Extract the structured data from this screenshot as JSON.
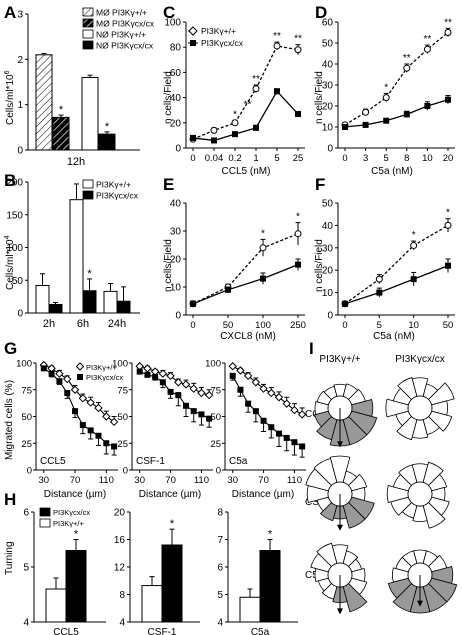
{
  "panels": {
    "A": {
      "letter": "A",
      "ylabel": "Cells/ml*10",
      "ylabel_sup": "6",
      "legend": [
        "MØ PI3Kγ+/+",
        "MØ PI3Kγcx/cx",
        "NØ PI3Kγ+/+",
        "NØ PI3Kγcx/cx"
      ],
      "xlabel": "12h"
    },
    "B": {
      "letter": "B",
      "ylabel": "Cells/ml*10",
      "ylabel_sup": "4",
      "legend": [
        "PI3Kγ+/+",
        "PI3Kγcx/cx"
      ]
    },
    "C": {
      "letter": "C",
      "ylabel": "n cells/Field",
      "xlabel": "CCL5 (nM)",
      "legend": [
        "PI3Kγ+/+",
        "PI3Kγcx/cx"
      ]
    },
    "D": {
      "letter": "D",
      "ylabel": "n cells/Field",
      "xlabel": "C5a (nM)"
    },
    "E": {
      "letter": "E",
      "ylabel": "n cells/Field",
      "xlabel": "CXCL8 (nM)"
    },
    "F": {
      "letter": "F",
      "ylabel": "n cells/Field",
      "xlabel": "C5a (nM)"
    },
    "G": {
      "letter": "G",
      "ylabel": "Migrated cells (%)",
      "xlabel": "Distance (µm)",
      "legend": [
        "PI3Kγ+/+",
        "PI3Kγcx/cx"
      ]
    },
    "H": {
      "letter": "H",
      "ylabel": "Turning",
      "legend": [
        "PI3Kγcx/cx",
        "PI3Kγ+/+"
      ]
    },
    "I": {
      "letter": "I",
      "cols": [
        "PI3Kγ+/+",
        "PI3Kγcx/cx"
      ],
      "rows": [
        "CCL5",
        "CSF-1",
        "C5a"
      ]
    }
  },
  "chart_data": [
    {
      "id": "A",
      "type": "bar",
      "categories": [
        "12h"
      ],
      "ylim": [
        0,
        3
      ],
      "yticks": [
        0,
        1,
        2,
        3
      ],
      "series": [
        {
          "name": "MØ PI3Kγ+/+",
          "values": [
            2.1
          ],
          "err": [
            0.03
          ]
        },
        {
          "name": "MØ PI3Kγcx/cx",
          "values": [
            0.72
          ],
          "err": [
            0.05
          ]
        },
        {
          "name": "NØ PI3Kγ+/+",
          "values": [
            1.6
          ],
          "err": [
            0.05
          ]
        },
        {
          "name": "NØ PI3Kγcx/cx",
          "values": [
            0.35
          ],
          "err": [
            0.05
          ]
        }
      ],
      "sig": [
        "",
        "*",
        "",
        "*"
      ]
    },
    {
      "id": "B",
      "type": "bar",
      "categories": [
        "2h",
        "6h",
        "24h"
      ],
      "ylim": [
        0,
        200
      ],
      "yticks": [
        0,
        50,
        100,
        150,
        200
      ],
      "series": [
        {
          "name": "PI3Kγ+/+",
          "values": [
            42,
            173,
            33
          ],
          "err": [
            18,
            24,
            12
          ]
        },
        {
          "name": "PI3Kγcx/cx",
          "values": [
            13,
            34,
            18
          ],
          "err": [
            3,
            18,
            22
          ]
        }
      ],
      "sig": [
        "",
        "*",
        ""
      ]
    },
    {
      "id": "C",
      "type": "line",
      "xticks": [
        "0",
        "0.04",
        "0.2",
        "1",
        "5",
        "25"
      ],
      "ylim": [
        0,
        100
      ],
      "yticks": [
        0,
        20,
        40,
        60,
        80,
        100
      ],
      "series": [
        {
          "name": "PI3Kγ+/+",
          "values": [
            7,
            14,
            20,
            47,
            81,
            78
          ],
          "err": [
            2,
            2,
            2,
            3,
            3,
            4
          ]
        },
        {
          "name": "PI3Kγcx/cx",
          "values": [
            8,
            6,
            11,
            16,
            45,
            27
          ],
          "err": [
            1,
            1,
            1,
            2,
            2,
            2
          ]
        }
      ],
      "sig": [
        "",
        "",
        "*",
        "**",
        "**",
        "**"
      ],
      "sig_extra": {
        "label": "**",
        "after_index": 2
      }
    },
    {
      "id": "D",
      "type": "line",
      "xticks": [
        "0",
        "3",
        "5",
        "8",
        "10",
        "20"
      ],
      "ylim": [
        0,
        60
      ],
      "yticks": [
        0,
        10,
        20,
        30,
        40,
        50,
        60
      ],
      "series": [
        {
          "name": "PI3Kγ+/+",
          "values": [
            11,
            17,
            24,
            38,
            47,
            55
          ],
          "err": [
            1,
            1.5,
            2,
            2,
            2,
            2
          ]
        },
        {
          "name": "PI3Kγcx/cx",
          "values": [
            10,
            11,
            13,
            16,
            20,
            23
          ],
          "err": [
            1,
            1,
            1,
            1.5,
            2,
            2
          ]
        }
      ],
      "sig": [
        "",
        "",
        "*",
        "**",
        "**",
        "**"
      ]
    },
    {
      "id": "E",
      "type": "line",
      "xticks": [
        "0",
        "50",
        "100",
        "250"
      ],
      "ylim": [
        0,
        40
      ],
      "yticks": [
        0,
        10,
        20,
        30,
        40
      ],
      "series": [
        {
          "name": "PI3Kγ+/+",
          "values": [
            4,
            10,
            24,
            29
          ],
          "err": [
            1,
            1,
            3,
            4
          ]
        },
        {
          "name": "PI3Kγcx/cx",
          "values": [
            4,
            9,
            13,
            18
          ],
          "err": [
            1,
            1,
            2,
            2
          ]
        }
      ],
      "sig": [
        "",
        "",
        "*",
        "*"
      ]
    },
    {
      "id": "F",
      "type": "line",
      "xticks": [
        "0",
        "5",
        "10",
        "50"
      ],
      "ylim": [
        0,
        50
      ],
      "yticks": [
        0,
        10,
        20,
        30,
        40,
        50
      ],
      "series": [
        {
          "name": "PI3Kγ+/+",
          "values": [
            5,
            16,
            31,
            40
          ],
          "err": [
            1,
            2,
            2,
            3
          ]
        },
        {
          "name": "PI3Kγcx/cx",
          "values": [
            5,
            10,
            16,
            22
          ],
          "err": [
            1,
            2,
            3,
            3
          ]
        }
      ],
      "sig": [
        "",
        "",
        "*",
        "*"
      ]
    },
    {
      "id": "G1",
      "type": "line",
      "label": "CCL5",
      "xticks": [
        "30",
        "70",
        "110"
      ],
      "xvals": [
        30,
        40,
        50,
        60,
        70,
        80,
        90,
        100,
        110,
        120
      ],
      "xlim": [
        20,
        125
      ],
      "ylim": [
        0,
        100
      ],
      "yticks": [
        0,
        25,
        50,
        75,
        100
      ],
      "series": [
        {
          "name": "PI3Kγ+/+",
          "values": [
            98,
            95,
            90,
            85,
            75,
            67,
            63,
            58,
            50,
            45
          ],
          "err": [
            1,
            2,
            3,
            3,
            4,
            4,
            5,
            5,
            5,
            5
          ]
        },
        {
          "name": "PI3Kγcx/cx",
          "values": [
            95,
            90,
            83,
            72,
            55,
            42,
            37,
            32,
            25,
            22
          ],
          "err": [
            2,
            3,
            3,
            5,
            6,
            8,
            8,
            9,
            10,
            8
          ]
        }
      ]
    },
    {
      "id": "G2",
      "type": "line",
      "label": "CSF-1",
      "xticks": [
        "30",
        "70",
        "110"
      ],
      "xvals": [
        30,
        40,
        50,
        60,
        70,
        80,
        90,
        100,
        110,
        120
      ],
      "xlim": [
        20,
        125
      ],
      "ylim": [
        0,
        100
      ],
      "yticks": [
        0,
        25,
        50,
        75,
        100
      ],
      "series": [
        {
          "name": "PI3Kγ+/+",
          "values": [
            97,
            95,
            92,
            90,
            88,
            82,
            80,
            76,
            72,
            70
          ],
          "err": [
            1,
            2,
            2,
            3,
            3,
            3,
            4,
            5,
            5,
            5
          ]
        },
        {
          "name": "PI3Kγcx/cx",
          "values": [
            92,
            89,
            87,
            82,
            73,
            70,
            60,
            55,
            52,
            48
          ],
          "err": [
            2,
            2,
            3,
            5,
            6,
            10,
            10,
            10,
            10,
            8
          ]
        }
      ]
    },
    {
      "id": "G3",
      "type": "line",
      "label": "C5a",
      "xticks": [
        "30",
        "70",
        "110"
      ],
      "xvals": [
        30,
        40,
        50,
        60,
        70,
        80,
        90,
        100,
        110,
        120
      ],
      "xlim": [
        20,
        125
      ],
      "ylim": [
        0,
        100
      ],
      "yticks": [
        0,
        25,
        50,
        75,
        100
      ],
      "series": [
        {
          "name": "PI3Kγ+/+",
          "values": [
            97,
            93,
            88,
            82,
            76,
            72,
            68,
            62,
            56,
            52
          ],
          "err": [
            1,
            2,
            3,
            4,
            4,
            5,
            5,
            6,
            6,
            6
          ]
        },
        {
          "name": "PI3Kγcx/cx",
          "values": [
            88,
            75,
            62,
            55,
            46,
            40,
            34,
            30,
            26,
            22
          ],
          "err": [
            4,
            6,
            8,
            10,
            10,
            10,
            12,
            12,
            12,
            10
          ]
        }
      ]
    },
    {
      "id": "H1",
      "type": "bar",
      "categories": [
        "CCL5"
      ],
      "ylim": [
        4,
        6
      ],
      "yticks": [
        4,
        5,
        6
      ],
      "series": [
        {
          "name": "PI3Kγ+/+",
          "values": [
            4.6
          ],
          "err": [
            0.2
          ]
        },
        {
          "name": "PI3Kγcx/cx",
          "values": [
            5.3
          ],
          "err": [
            0.2
          ]
        }
      ],
      "sig": "*"
    },
    {
      "id": "H2",
      "type": "bar",
      "categories": [
        "CSF-1"
      ],
      "ylim": [
        4,
        20
      ],
      "yticks": [
        4,
        8,
        12,
        16,
        20
      ],
      "series": [
        {
          "name": "PI3Kγ+/+",
          "values": [
            9.3
          ],
          "err": [
            1.3
          ]
        },
        {
          "name": "PI3Kγcx/cx",
          "values": [
            15.2
          ],
          "err": [
            2.3
          ]
        }
      ],
      "sig": "*"
    },
    {
      "id": "H3",
      "type": "bar",
      "categories": [
        "C5a"
      ],
      "ylim": [
        4,
        8
      ],
      "yticks": [
        4,
        5,
        6,
        7,
        8
      ],
      "series": [
        {
          "name": "PI3Kγ+/+",
          "values": [
            4.9
          ],
          "err": [
            0.3
          ]
        },
        {
          "name": "PI3Kγcx/cx",
          "values": [
            6.6
          ],
          "err": [
            0.4
          ]
        }
      ],
      "sig": "*"
    },
    {
      "id": "I",
      "type": "rose",
      "bins": 12,
      "roses": [
        {
          "row": "CCL5",
          "col": "PI3Kγ+/+",
          "values": [
            0.45,
            0.5,
            0.55,
            0.8,
            1,
            1,
            1,
            0.8,
            0.55,
            0.5,
            0.45,
            0.4
          ],
          "shade": [
            3,
            8
          ],
          "arrow": 0.9
        },
        {
          "row": "CCL5",
          "col": "PI3Kγcx/cx",
          "values": [
            0.7,
            0.5,
            0.9,
            0.6,
            0.8,
            0.6,
            0.7,
            0.8,
            0.5,
            0.85,
            0.6,
            0.75
          ],
          "shade": null,
          "arrow": 0
        },
        {
          "row": "CSF-1",
          "col": "PI3Kγ+/+",
          "values": [
            1,
            0.45,
            0.6,
            0.5,
            0.9,
            0.9,
            0.5,
            0.6,
            0.45,
            0.8,
            0.9,
            0.95
          ],
          "shade": [
            4,
            7
          ],
          "arrow": 0.8
        },
        {
          "row": "CSF-1",
          "col": "PI3Kγcx/cx",
          "values": [
            0.7,
            0.8,
            0.6,
            0.5,
            0.7,
            0.9,
            0.6,
            0.5,
            0.7,
            0.8,
            0.6,
            0.7
          ],
          "shade": null,
          "arrow": 0
        },
        {
          "row": "C5a",
          "col": "PI3Kγ+/+",
          "values": [
            0.7,
            0.5,
            0.4,
            0.5,
            0.6,
            1,
            0.6,
            0.5,
            0.4,
            0.5,
            0.7,
            0.8
          ],
          "shade": [
            5,
            6
          ],
          "arrow": 0.9
        },
        {
          "row": "C5a",
          "col": "PI3Kγcx/cx",
          "values": [
            0.5,
            0.5,
            0.6,
            0.8,
            1,
            1,
            1,
            1,
            0.8,
            0.6,
            0.5,
            0.5
          ],
          "shade": [
            3,
            8
          ],
          "arrow": 0.6
        }
      ]
    }
  ]
}
